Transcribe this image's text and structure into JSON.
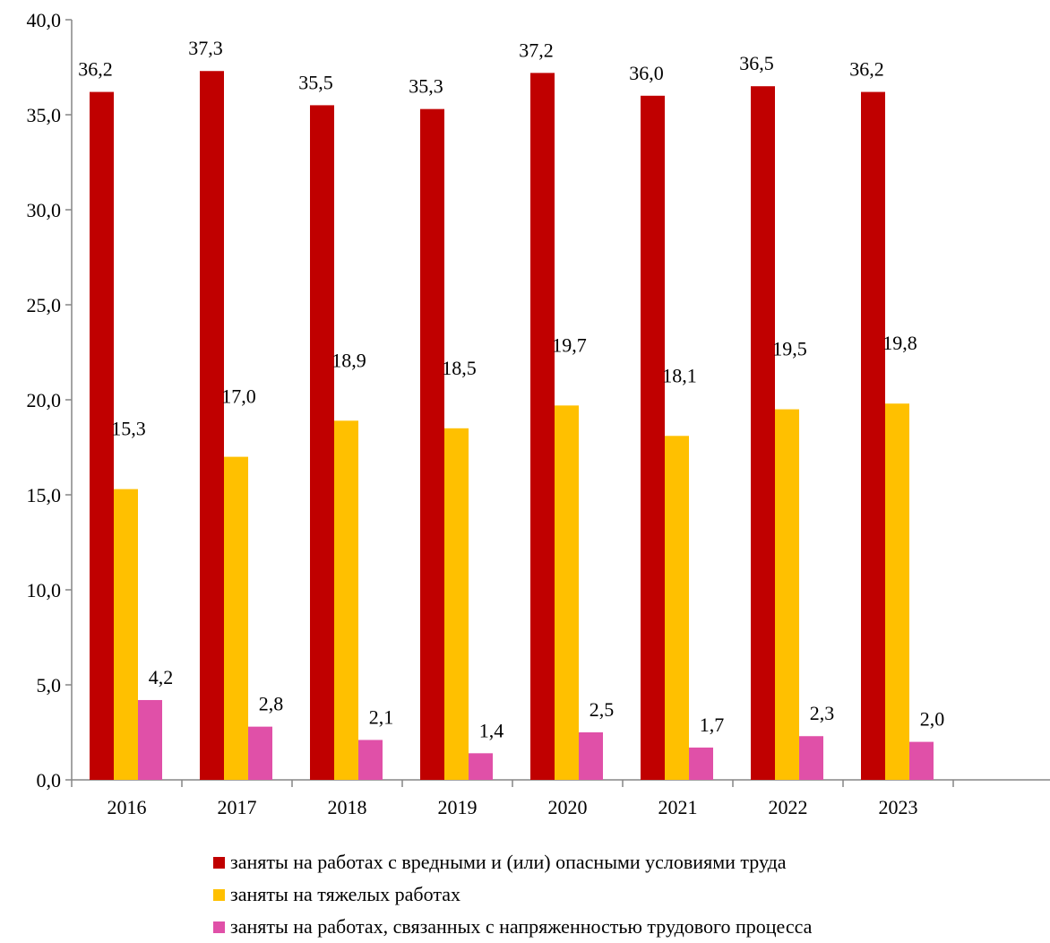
{
  "chart_data": {
    "type": "bar",
    "categories": [
      "2016",
      "2017",
      "2018",
      "2019",
      "2020",
      "2021",
      "2022",
      "2023"
    ],
    "series": [
      {
        "name": "заняты на работах с вредными и (или) опасными условиями труда",
        "color": "#C00000",
        "values": [
          36.2,
          37.3,
          35.5,
          35.3,
          37.2,
          36.0,
          36.5,
          36.2
        ],
        "labels": [
          "36,2",
          "37,3",
          "35,5",
          "35,3",
          "37,2",
          "36,0",
          "36,5",
          "36,2"
        ]
      },
      {
        "name": "заняты на тяжелых работах",
        "color": "#FFC000",
        "values": [
          15.3,
          17.0,
          18.9,
          18.5,
          19.7,
          18.1,
          19.5,
          19.8
        ],
        "labels": [
          "15,3",
          "17,0",
          "18,9",
          "18,5",
          "19,7",
          "18,1",
          "19,5",
          "19,8"
        ]
      },
      {
        "name": "заняты на работах, связанных с напряженностью трудового процесса",
        "color": "#E050A8",
        "values": [
          4.2,
          2.8,
          2.1,
          1.4,
          2.5,
          1.7,
          2.3,
          2.0
        ],
        "labels": [
          "4,2",
          "2,8",
          "2,1",
          "1,4",
          "2,5",
          "1,7",
          "2,3",
          "2,0"
        ]
      }
    ],
    "ylim": [
      0,
      40
    ],
    "yticks": [
      0,
      5,
      10,
      15,
      20,
      25,
      30,
      35,
      40
    ],
    "ytick_labels": [
      "0,0",
      "5,0",
      "10,0",
      "15,0",
      "20,0",
      "25,0",
      "30,0",
      "35,0",
      "40,0"
    ],
    "grid": false,
    "legend_position": "bottom"
  }
}
